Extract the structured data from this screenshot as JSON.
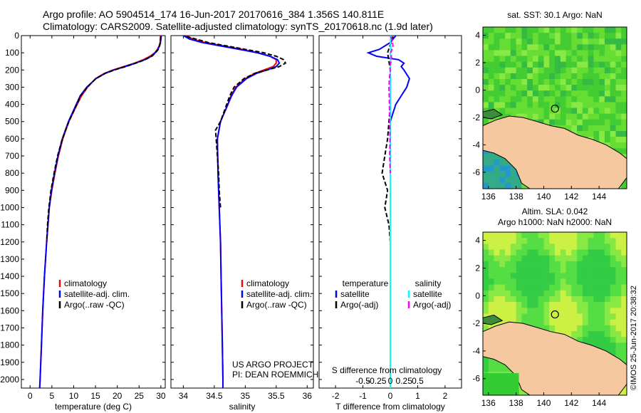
{
  "header": {
    "line1": "Argo profile: AO 5904514_174 16-Jun-2017 20170616_384 1.356S 140.811E",
    "line2": "Climatology: CARS2009. Satellite-adjusted climatology: synTS_20170618.nc (1.9d later)"
  },
  "side_note": "©IMOS 25-Jun-2017 20:38:32",
  "colors": {
    "climatology": "#ff0000",
    "satellite": "#0000ff",
    "argo": "#000000",
    "satellite_salinity": "#00ffff",
    "argo_salinity": "#ff00ff",
    "land": "#f5c8a0",
    "ocean": "#3c8c3c"
  },
  "chart_data": [
    {
      "id": "temperature",
      "type": "line",
      "xlabel": "temperature (deg C)",
      "ylabel": "",
      "xlim": [
        -2,
        31
      ],
      "ylim": [
        2050,
        0
      ],
      "xticks": [
        0,
        5,
        10,
        15,
        20,
        25,
        30
      ],
      "yticks": [
        0,
        100,
        200,
        300,
        400,
        500,
        600,
        700,
        800,
        900,
        1000,
        1100,
        1200,
        1300,
        1400,
        1500,
        1600,
        1700,
        1800,
        1900,
        2000
      ],
      "legend": [
        "climatology",
        "satellite-adj. clim.",
        "Argo(..raw -QC)"
      ],
      "series": [
        {
          "name": "climatology",
          "color": "#ff0000",
          "depth": [
            0,
            20,
            40,
            60,
            80,
            100,
            120,
            140,
            160,
            180,
            200,
            220,
            250,
            300,
            350,
            400,
            500,
            600,
            700,
            800,
            900,
            1000,
            1200,
            1400,
            1600,
            1800,
            2000,
            2050
          ],
          "values": [
            29.9,
            29.9,
            29.8,
            29.6,
            29.2,
            28.6,
            27.5,
            26.0,
            24.0,
            21.5,
            19.0,
            17.0,
            15.0,
            13.2,
            11.8,
            10.8,
            8.9,
            7.5,
            6.5,
            5.7,
            5.0,
            4.4,
            3.8,
            3.3,
            2.9,
            2.6,
            2.3,
            2.2
          ]
        },
        {
          "name": "satellite-adj. clim.",
          "color": "#0000ff",
          "depth": [
            0,
            20,
            40,
            60,
            80,
            100,
            120,
            140,
            160,
            180,
            200,
            220,
            250,
            300,
            350,
            400,
            500,
            600,
            700,
            800,
            900,
            1000,
            1200,
            1400,
            1600,
            1800,
            2000,
            2050
          ],
          "values": [
            30.1,
            30.0,
            29.9,
            29.7,
            29.3,
            28.7,
            27.8,
            26.3,
            24.2,
            21.8,
            19.2,
            17.2,
            15.1,
            13.0,
            11.5,
            10.6,
            8.8,
            7.4,
            6.4,
            5.6,
            4.9,
            4.4,
            3.8,
            3.3,
            2.9,
            2.6,
            2.3,
            2.2
          ]
        },
        {
          "name": "Argo(..raw -QC)",
          "color": "#000000",
          "depth": [
            5,
            20,
            40,
            60,
            80,
            100,
            120,
            140,
            160,
            180,
            200,
            220,
            250,
            300,
            350,
            400,
            500,
            600,
            700,
            800,
            900,
            1000,
            1100,
            1200
          ],
          "values": [
            30.0,
            29.9,
            29.9,
            29.7,
            29.4,
            28.8,
            27.9,
            26.4,
            24.3,
            21.9,
            19.3,
            17.2,
            15.1,
            13.1,
            11.6,
            10.7,
            8.9,
            7.4,
            6.3,
            5.5,
            4.8,
            4.3,
            4.0,
            3.8
          ]
        }
      ]
    },
    {
      "id": "salinity",
      "type": "line",
      "xlabel": "salinity",
      "ylabel": "",
      "xlim": [
        33.8,
        36.1
      ],
      "ylim": [
        2050,
        0
      ],
      "xticks": [
        34,
        34.5,
        35,
        35.5,
        36
      ],
      "legend": [
        "climatology",
        "satellite-adj. clim.",
        "Argo(..raw -QC)"
      ],
      "annotation": [
        "US ARGO PROJECT",
        "PI: DEAN ROEMMICH"
      ],
      "series": [
        {
          "name": "climatology",
          "color": "#ff0000",
          "depth": [
            0,
            20,
            40,
            60,
            80,
            100,
            120,
            140,
            160,
            180,
            200,
            220,
            250,
            300,
            350,
            400,
            500,
            600,
            800,
            1000,
            1200,
            1400,
            1600,
            1800,
            2000,
            2050
          ],
          "values": [
            34.05,
            34.15,
            34.35,
            34.65,
            34.95,
            35.2,
            35.4,
            35.5,
            35.5,
            35.45,
            35.3,
            35.15,
            35.0,
            34.85,
            34.77,
            34.72,
            34.6,
            34.55,
            34.56,
            34.58,
            34.6,
            34.61,
            34.62,
            34.63,
            34.64,
            34.64
          ]
        },
        {
          "name": "satellite-adj. clim.",
          "color": "#0000ff",
          "depth": [
            0,
            20,
            40,
            60,
            80,
            100,
            120,
            140,
            160,
            180,
            200,
            220,
            250,
            300,
            350,
            400,
            500,
            600,
            800,
            1000,
            1200,
            1400,
            1600,
            1800,
            2000,
            2050
          ],
          "values": [
            34.0,
            34.1,
            34.3,
            34.6,
            34.9,
            35.2,
            35.4,
            35.52,
            35.55,
            35.5,
            35.35,
            35.18,
            35.02,
            34.86,
            34.78,
            34.72,
            34.6,
            34.55,
            34.56,
            34.58,
            34.6,
            34.61,
            34.62,
            34.63,
            34.64,
            34.64
          ]
        },
        {
          "name": "Argo(..raw -QC)",
          "color": "#000000",
          "depth": [
            5,
            20,
            40,
            60,
            80,
            100,
            120,
            140,
            160,
            180,
            200,
            220,
            250,
            300,
            350,
            400,
            500,
            550,
            600,
            700,
            800,
            900,
            1000
          ],
          "values": [
            34.05,
            34.2,
            34.4,
            34.7,
            35.0,
            35.3,
            35.5,
            35.62,
            35.65,
            35.55,
            35.35,
            35.15,
            34.98,
            34.82,
            34.75,
            34.7,
            34.6,
            34.52,
            34.53,
            34.55,
            34.57,
            34.58,
            34.6
          ]
        }
      ]
    },
    {
      "id": "difference",
      "type": "line",
      "xlabel": "T difference from climatology",
      "xlabel_top": "S difference from climatology",
      "xlim": [
        -2.6,
        2.6
      ],
      "ylim": [
        2050,
        0
      ],
      "xticks": [
        -2,
        -1,
        0,
        1,
        2
      ],
      "xticks_top": [
        "-0.5",
        "-0.25",
        "0",
        "0.25",
        "0.5"
      ],
      "legend_temperature_title": "temperature",
      "legend_salinity_title": "salinity",
      "legend": [
        "satellite",
        "Argo(-adj)",
        "satellite",
        "Argo(-adj)"
      ],
      "series": [
        {
          "name": "temperature satellite",
          "color": "#0000ff",
          "depth": [
            0,
            40,
            80,
            100,
            120,
            140,
            160,
            180,
            200,
            250,
            300,
            350,
            400,
            450,
            500,
            600,
            800,
            1000,
            1500,
            2050
          ],
          "values": [
            0.2,
            0.0,
            -0.4,
            -0.8,
            -0.5,
            0.3,
            0.5,
            0.4,
            0.5,
            0.7,
            0.6,
            0.4,
            0.2,
            0.1,
            0.0,
            0.0,
            0.0,
            0.0,
            0.0,
            0.0
          ]
        },
        {
          "name": "temperature Argo(-adj)",
          "color": "#000000",
          "depth": [
            5,
            100,
            200,
            400,
            600,
            700,
            800,
            850,
            900,
            1000,
            1100,
            1200
          ],
          "values": [
            0.1,
            -0.1,
            0.0,
            0.0,
            -0.1,
            -0.2,
            -0.3,
            -0.2,
            -0.1,
            -0.2,
            -0.05,
            0.0
          ]
        },
        {
          "name": "salinity satellite",
          "color": "#00ffff",
          "depth": [
            0,
            40,
            80,
            100,
            150,
            200,
            400,
            600,
            1000,
            2050
          ],
          "values": [
            0.02,
            0.0,
            0.02,
            0.0,
            0.01,
            0.0,
            0.0,
            0.0,
            0.0,
            0.0
          ]
        },
        {
          "name": "salinity Argo(-adj)",
          "color": "#ff00ff",
          "depth": [
            5,
            20,
            40,
            60,
            80,
            100,
            120,
            150,
            180,
            200,
            250,
            300,
            400,
            500,
            600,
            700,
            800
          ],
          "values": [
            0.02,
            0.05,
            0.08,
            0.1,
            0.06,
            0.02,
            0.04,
            0.03,
            -0.02,
            0.0,
            -0.03,
            -0.05,
            -0.03,
            -0.02,
            -0.01,
            -0.02,
            0.0
          ]
        }
      ]
    },
    {
      "id": "sst-map",
      "type": "heatmap",
      "title": "sat. SST: 30.1  Argo: NaN",
      "xlim": [
        135.6,
        146
      ],
      "ylim": [
        -7.2,
        4.6
      ],
      "xticks": [
        136,
        138,
        140,
        142,
        144
      ],
      "yticks": [
        4,
        2,
        0,
        -2,
        -4,
        -6
      ],
      "argo_position": [
        140.811,
        -1.356
      ]
    },
    {
      "id": "sla-map",
      "type": "heatmap",
      "title_lines": [
        "Altim. SLA: 0.042",
        "Argo h1000: NaN h2000: NaN"
      ],
      "xlim": [
        135.6,
        146
      ],
      "ylim": [
        -7.2,
        4.6
      ],
      "xticks": [
        136,
        138,
        140,
        142,
        144
      ],
      "yticks": [
        4,
        2,
        0,
        -2,
        -4,
        -6
      ],
      "argo_position": [
        140.811,
        -1.356
      ]
    }
  ]
}
